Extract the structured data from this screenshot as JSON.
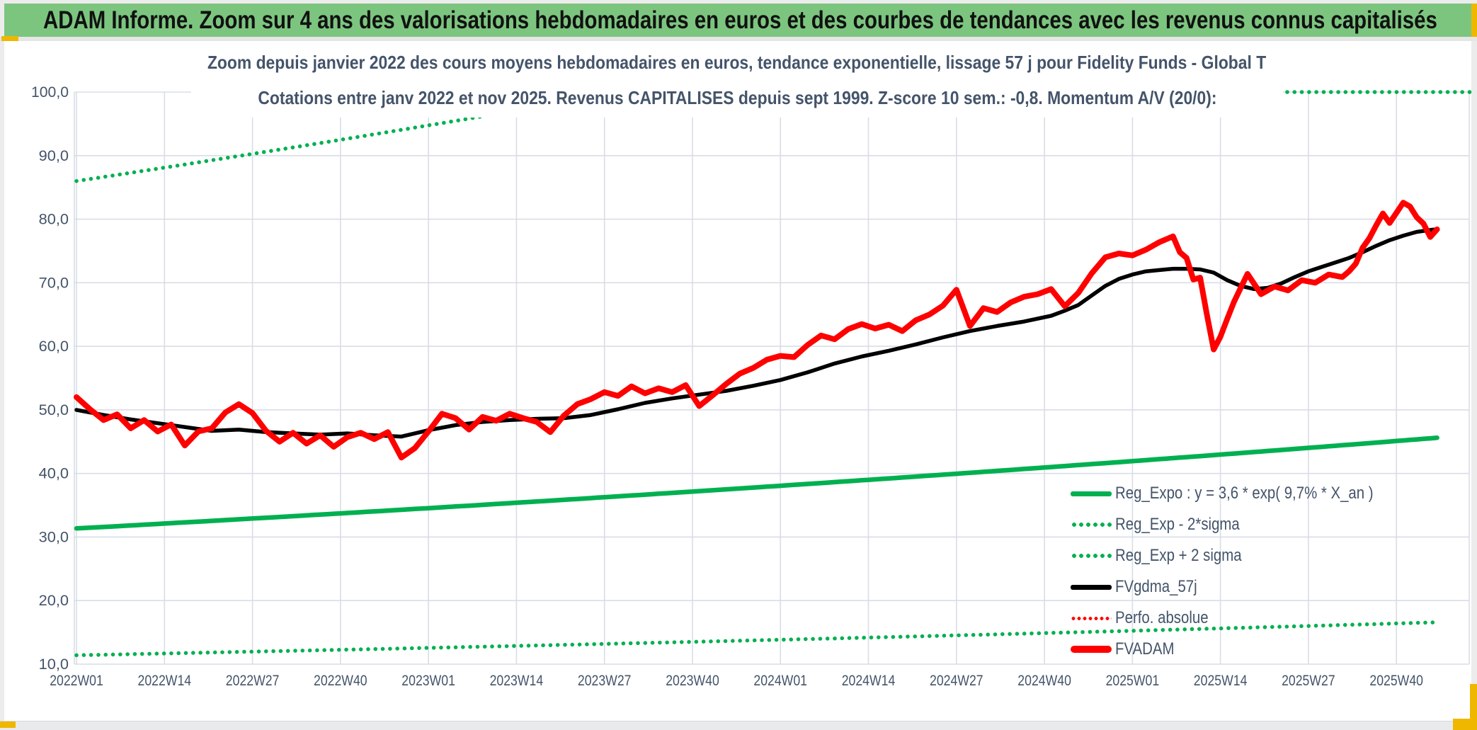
{
  "header": {
    "title": "ADAM Informe. Zoom sur 4 ans des valorisations hebdomadaires en euros et des courbes de tendances avec les revenus connus capitalisés"
  },
  "colors": {
    "header_bg": "#7CC57F",
    "text_navy": "#44546A",
    "green": "#00B050",
    "red": "#FF0000",
    "black": "#000000",
    "gridline": "#D8DDE6",
    "gold_accent": "#EFB700",
    "panel": "#FFFFFF"
  },
  "chart_data": {
    "type": "line",
    "title_line1": "Zoom depuis janvier 2022 des cours moyens hebdomadaires en euros, tendance exponentielle, lissage 57 j pour Fidelity Funds - Global T",
    "title_line2": "Cotations entre janv 2022 et nov 2025. Revenus CAPITALISES depuis sept 1999. Z-score 10 sem.: -0,8. Momentum A/V (20/0):",
    "xlabel": "",
    "ylabel": "",
    "ylim": [
      10,
      100
    ],
    "grid": true,
    "legend_position": "inside-lower-right",
    "y_ticks": [
      {
        "v": 100,
        "label": "100,0"
      },
      {
        "v": 90,
        "label": "90,0"
      },
      {
        "v": 80,
        "label": "80,0"
      },
      {
        "v": 70,
        "label": "70,0"
      },
      {
        "v": 60,
        "label": "60,0"
      },
      {
        "v": 50,
        "label": "50,0"
      },
      {
        "v": 40,
        "label": "40,0"
      },
      {
        "v": 30,
        "label": "30,0"
      },
      {
        "v": 20,
        "label": "20,0"
      },
      {
        "v": 10,
        "label": "10,0"
      }
    ],
    "x_ticks": [
      {
        "week": 0,
        "label": "2022W01"
      },
      {
        "week": 13,
        "label": "2022W14"
      },
      {
        "week": 26,
        "label": "2022W27"
      },
      {
        "week": 39,
        "label": "2022W40"
      },
      {
        "week": 52,
        "label": "2023W01"
      },
      {
        "week": 65,
        "label": "2023W14"
      },
      {
        "week": 78,
        "label": "2023W27"
      },
      {
        "week": 91,
        "label": "2023W40"
      },
      {
        "week": 104,
        "label": "2024W01"
      },
      {
        "week": 117,
        "label": "2024W14"
      },
      {
        "week": 130,
        "label": "2024W27"
      },
      {
        "week": 143,
        "label": "2024W40"
      },
      {
        "week": 156,
        "label": "2025W01"
      },
      {
        "week": 169,
        "label": "2025W14"
      },
      {
        "week": 182,
        "label": "2025W27"
      },
      {
        "week": 195,
        "label": "2025W40"
      }
    ],
    "legend": [
      {
        "label": "Reg_Expo : y = 3,6 * exp( 9,7% *  X_an )",
        "swatch": "line-solid",
        "color": "#00B050"
      },
      {
        "label": "Reg_Exp - 2*sigma",
        "swatch": "line-dotted",
        "color": "#00B050"
      },
      {
        "label": "Reg_Exp + 2 sigma",
        "swatch": "line-dotted",
        "color": "#00B050"
      },
      {
        "label": "FVgdma_57j",
        "swatch": "line-solid",
        "color": "#000000"
      },
      {
        "label": "Perfo. absolue",
        "swatch": "line-dotted-small",
        "color": "#FF0000"
      },
      {
        "label": "FVADAM",
        "swatch": "line-solid-thick",
        "color": "#FF0000"
      }
    ],
    "series": [
      {
        "name": "Reg_Exp - 2*sigma",
        "color": "#00B050",
        "width": 5.5,
        "dotted": true,
        "dot_gap": 10.2,
        "model": "exponential",
        "start_value": 11.4,
        "annual_rate_pct": 9.7,
        "end_week": 201
      },
      {
        "name": "Reg_Exp + 2 sigma",
        "color": "#00B050",
        "width": 5.5,
        "dotted": true,
        "dot_gap": 10.2,
        "model": "exponential",
        "start_value": 86.0,
        "annual_rate_pct": 9.7,
        "clip_max": 100,
        "end_week": 206
      },
      {
        "name": "Reg_Expo",
        "color": "#00B050",
        "width": 6.5,
        "dotted": false,
        "model": "exponential",
        "start_value": 31.35,
        "annual_rate_pct": 9.7,
        "end_week": 201
      },
      {
        "name": "Perfo. absolue",
        "color": "#FF0000",
        "width": 4.5,
        "dotted": true,
        "dot_gap": 9,
        "follows": "FVADAM",
        "note": "coincides with FVADAM, hidden beneath it"
      },
      {
        "name": "FVgdma_57j",
        "color": "#000000",
        "width": 5.5,
        "dotted": false,
        "points": [
          [
            0,
            50.0
          ],
          [
            4,
            49.2
          ],
          [
            8,
            48.5
          ],
          [
            12,
            47.9
          ],
          [
            16,
            47.3
          ],
          [
            20,
            46.7
          ],
          [
            24,
            46.9
          ],
          [
            28,
            46.5
          ],
          [
            32,
            46.3
          ],
          [
            36,
            46.1
          ],
          [
            40,
            46.3
          ],
          [
            44,
            46.0
          ],
          [
            48,
            45.8
          ],
          [
            52,
            46.8
          ],
          [
            56,
            47.6
          ],
          [
            60,
            48.1
          ],
          [
            64,
            48.4
          ],
          [
            68,
            48.6
          ],
          [
            72,
            48.7
          ],
          [
            76,
            49.2
          ],
          [
            80,
            50.1
          ],
          [
            84,
            51.1
          ],
          [
            88,
            51.8
          ],
          [
            92,
            52.4
          ],
          [
            96,
            53.0
          ],
          [
            100,
            53.8
          ],
          [
            104,
            54.7
          ],
          [
            108,
            55.9
          ],
          [
            112,
            57.3
          ],
          [
            116,
            58.4
          ],
          [
            120,
            59.3
          ],
          [
            124,
            60.3
          ],
          [
            128,
            61.4
          ],
          [
            132,
            62.4
          ],
          [
            136,
            63.2
          ],
          [
            140,
            63.9
          ],
          [
            144,
            64.8
          ],
          [
            146,
            65.6
          ],
          [
            148,
            66.5
          ],
          [
            150,
            68.0
          ],
          [
            152,
            69.5
          ],
          [
            154,
            70.6
          ],
          [
            156,
            71.3
          ],
          [
            158,
            71.8
          ],
          [
            160,
            72.0
          ],
          [
            162,
            72.2
          ],
          [
            164,
            72.2
          ],
          [
            166,
            72.1
          ],
          [
            168,
            71.6
          ],
          [
            170,
            70.4
          ],
          [
            172,
            69.5
          ],
          [
            174,
            69.0
          ],
          [
            176,
            69.2
          ],
          [
            178,
            69.9
          ],
          [
            180,
            70.9
          ],
          [
            182,
            71.8
          ],
          [
            184,
            72.5
          ],
          [
            186,
            73.2
          ],
          [
            188,
            73.9
          ],
          [
            190,
            74.8
          ],
          [
            192,
            75.8
          ],
          [
            194,
            76.7
          ],
          [
            196,
            77.4
          ],
          [
            198,
            78.0
          ],
          [
            200,
            78.3
          ],
          [
            201,
            78.4
          ]
        ]
      },
      {
        "name": "FVADAM",
        "color": "#FF0000",
        "width": 8,
        "dotted": false,
        "points": [
          [
            0,
            52.0
          ],
          [
            2,
            50.1
          ],
          [
            4,
            48.4
          ],
          [
            6,
            49.3
          ],
          [
            8,
            47.1
          ],
          [
            10,
            48.4
          ],
          [
            12,
            46.6
          ],
          [
            14,
            47.7
          ],
          [
            16,
            44.4
          ],
          [
            18,
            46.6
          ],
          [
            20,
            47.1
          ],
          [
            22,
            49.6
          ],
          [
            24,
            50.9
          ],
          [
            26,
            49.5
          ],
          [
            28,
            46.7
          ],
          [
            30,
            45.0
          ],
          [
            32,
            46.4
          ],
          [
            34,
            44.7
          ],
          [
            36,
            46.0
          ],
          [
            38,
            44.2
          ],
          [
            40,
            45.7
          ],
          [
            42,
            46.4
          ],
          [
            44,
            45.4
          ],
          [
            46,
            46.5
          ],
          [
            48,
            42.5
          ],
          [
            50,
            44.0
          ],
          [
            52,
            46.6
          ],
          [
            54,
            49.4
          ],
          [
            56,
            48.7
          ],
          [
            58,
            46.9
          ],
          [
            60,
            48.9
          ],
          [
            62,
            48.3
          ],
          [
            64,
            49.4
          ],
          [
            66,
            48.7
          ],
          [
            68,
            48.1
          ],
          [
            70,
            46.5
          ],
          [
            72,
            49.1
          ],
          [
            74,
            50.9
          ],
          [
            76,
            51.7
          ],
          [
            78,
            52.8
          ],
          [
            80,
            52.2
          ],
          [
            82,
            53.7
          ],
          [
            84,
            52.6
          ],
          [
            86,
            53.4
          ],
          [
            88,
            52.8
          ],
          [
            90,
            53.9
          ],
          [
            92,
            50.6
          ],
          [
            94,
            52.3
          ],
          [
            96,
            54.1
          ],
          [
            98,
            55.7
          ],
          [
            100,
            56.6
          ],
          [
            102,
            57.9
          ],
          [
            104,
            58.5
          ],
          [
            106,
            58.3
          ],
          [
            108,
            60.2
          ],
          [
            110,
            61.7
          ],
          [
            112,
            61.1
          ],
          [
            114,
            62.7
          ],
          [
            116,
            63.5
          ],
          [
            118,
            62.8
          ],
          [
            120,
            63.4
          ],
          [
            122,
            62.4
          ],
          [
            124,
            64.1
          ],
          [
            126,
            65.0
          ],
          [
            128,
            66.4
          ],
          [
            130,
            68.9
          ],
          [
            132,
            63.2
          ],
          [
            134,
            66.0
          ],
          [
            136,
            65.4
          ],
          [
            138,
            66.9
          ],
          [
            140,
            67.8
          ],
          [
            142,
            68.2
          ],
          [
            144,
            69.0
          ],
          [
            146,
            66.3
          ],
          [
            148,
            68.4
          ],
          [
            150,
            71.5
          ],
          [
            152,
            74.0
          ],
          [
            154,
            74.6
          ],
          [
            156,
            74.3
          ],
          [
            158,
            75.2
          ],
          [
            160,
            76.4
          ],
          [
            162,
            77.3
          ],
          [
            163,
            74.8
          ],
          [
            164,
            73.9
          ],
          [
            165,
            70.5
          ],
          [
            166,
            70.8
          ],
          [
            167,
            65.0
          ],
          [
            168,
            59.5
          ],
          [
            169,
            61.5
          ],
          [
            170,
            64.3
          ],
          [
            171,
            67.0
          ],
          [
            172,
            69.2
          ],
          [
            173,
            71.4
          ],
          [
            174,
            69.8
          ],
          [
            175,
            68.2
          ],
          [
            177,
            69.4
          ],
          [
            179,
            68.8
          ],
          [
            181,
            70.4
          ],
          [
            183,
            70.0
          ],
          [
            185,
            71.3
          ],
          [
            187,
            70.9
          ],
          [
            188,
            71.8
          ],
          [
            189,
            73.0
          ],
          [
            190,
            75.5
          ],
          [
            191,
            77.0
          ],
          [
            192,
            79.0
          ],
          [
            193,
            80.9
          ],
          [
            194,
            79.4
          ],
          [
            195,
            81.0
          ],
          [
            196,
            82.6
          ],
          [
            197,
            82.0
          ],
          [
            198,
            80.3
          ],
          [
            199,
            79.3
          ],
          [
            200,
            77.2
          ],
          [
            201,
            78.4
          ]
        ]
      }
    ]
  }
}
